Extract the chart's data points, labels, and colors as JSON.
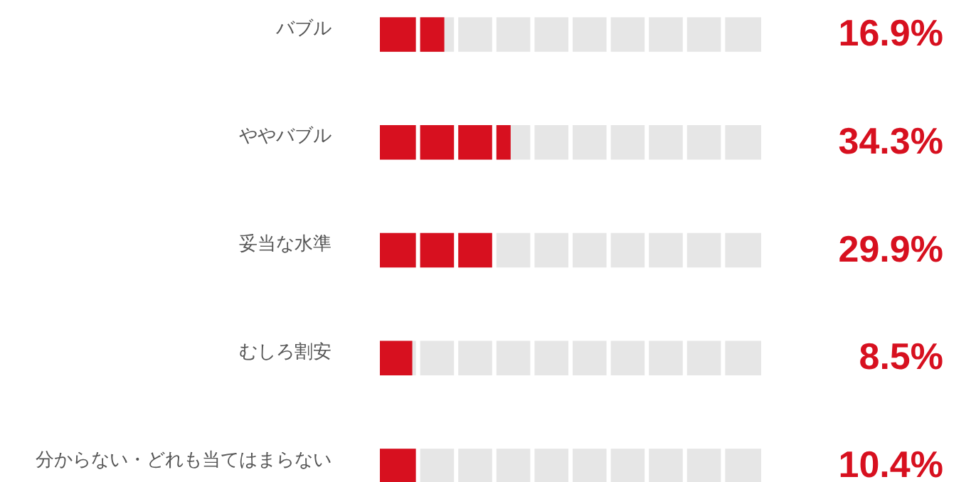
{
  "chart_data": {
    "type": "bar",
    "orientation": "horizontal",
    "categories": [
      "バブル",
      "ややバブル",
      "妥当な水準",
      "むしろ割安",
      "分からない・どれも当てはまらない"
    ],
    "values": [
      16.9,
      34.3,
      29.9,
      8.5,
      10.4
    ],
    "color": "#d7101f",
    "value_labels": [
      "16.9%",
      "34.3%",
      "29.9%",
      "8.5%",
      "10.4%"
    ],
    "xlim": [
      0,
      100
    ],
    "tick_labels": "y"
  }
}
